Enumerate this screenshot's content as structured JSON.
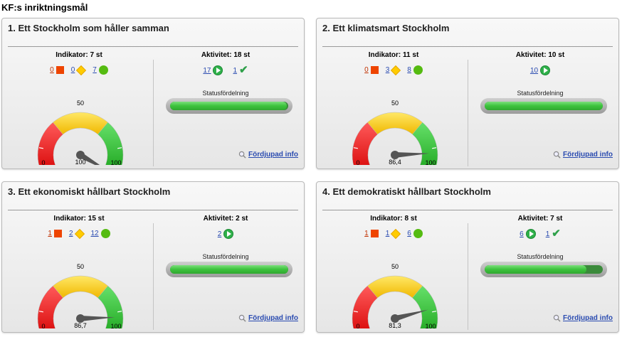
{
  "page": {
    "title": "KF:s inriktningsmål"
  },
  "labels": {
    "indikator_prefix": "Indikator:",
    "aktivitet_prefix": "Aktivitet:",
    "st_suffix": "st",
    "status": "Statusfördelning",
    "info": "Fördjupad info",
    "gauge_min": "0",
    "gauge_mid": "50",
    "gauge_max": "100"
  },
  "colors": {
    "red": "#ee4400",
    "yellow": "#ffcc00",
    "green": "#55bb11",
    "activity": "#2fb04a",
    "link": "#2a4bb0"
  },
  "cards": [
    {
      "title": "1. Ett Stockholm som håller samman",
      "ind_total": "7",
      "red": "0",
      "yellow": "0",
      "green": "7",
      "act_total": "18",
      "act_ongoing": "17",
      "act_done": "1",
      "gauge_value": 100,
      "gauge_label": "100",
      "status_fill": 0.99
    },
    {
      "title": "2. Ett klimatsmart Stockholm",
      "ind_total": "11",
      "red": "0",
      "yellow": "3",
      "green": "8",
      "act_total": "10",
      "act_ongoing": "10",
      "act_done": null,
      "gauge_value": 86.4,
      "gauge_label": "86,4",
      "status_fill": 1.0
    },
    {
      "title": "3. Ett ekonomiskt hållbart Stockholm",
      "ind_total": "15",
      "red": "1",
      "yellow": "2",
      "green": "12",
      "act_total": "2",
      "act_ongoing": "2",
      "act_done": null,
      "gauge_value": 86.7,
      "gauge_label": "86,7",
      "status_fill": 1.0
    },
    {
      "title": "4. Ett demokratiskt hållbart Stockholm",
      "ind_total": "8",
      "red": "1",
      "yellow": "1",
      "green": "6",
      "act_total": "7",
      "act_ongoing": "6",
      "act_done": "1",
      "gauge_value": 81.3,
      "gauge_label": "81,3",
      "status_fill": 0.86
    }
  ]
}
